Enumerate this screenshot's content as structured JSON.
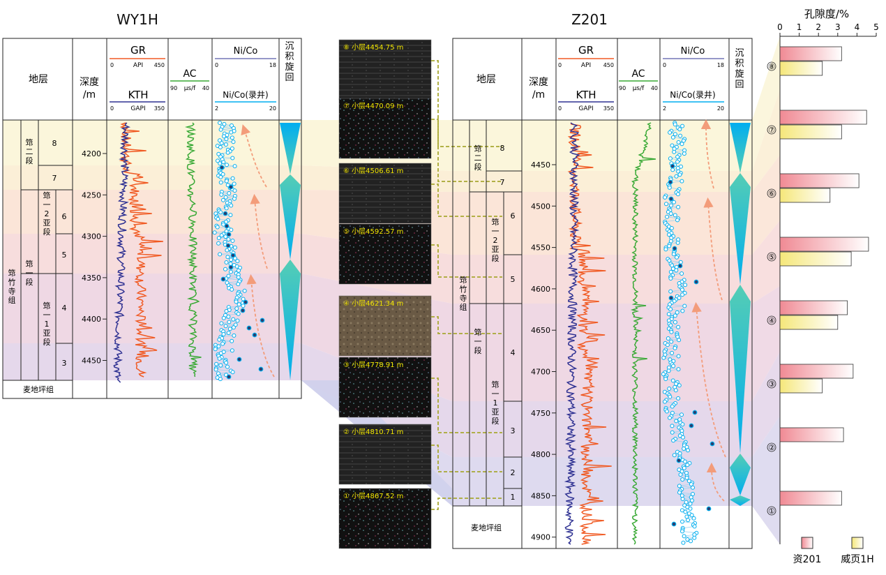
{
  "colors": {
    "gr": "#f05a23",
    "kth": "#2e3192",
    "ac": "#39a935",
    "nico": "#00aeef",
    "nico_log": "#5ab4e6",
    "thin_line": "#9fd3f0",
    "arrow": "#f39c7a",
    "bar_z201": "#f08a94",
    "bar_wy1h": "#f7ea8a",
    "cycle_top": "#00aeef",
    "cycle_mid": "#4cc8b0"
  },
  "wy1h": {
    "title": "WY1H",
    "headers": {
      "strata": "地层",
      "depth_l1": "深度",
      "depth_l2": "/m",
      "gr": "GR",
      "gr_unit": "API",
      "gr_min": "0",
      "gr_max": "450",
      "kth": "KTH",
      "kth_unit": "GAPI",
      "kth_min": "0",
      "kth_max": "350",
      "ac": "AC",
      "ac_unit": "μs/f",
      "ac_min": "90",
      "ac_max": "40",
      "nico": "Ni/Co",
      "nico_min": "0",
      "nico_max": "18",
      "nico_log": "Ni/Co(录井)",
      "nico_log_min": "2",
      "nico_log_max": "20",
      "cycle": "沉积旋回"
    },
    "depth_ticks": [
      "4200",
      "4250",
      "4300",
      "4350",
      "4400",
      "4450"
    ],
    "formation": "筇竹寺组",
    "members": [
      "筇二段",
      "筇一段"
    ],
    "submembers": [
      "筇一2亚段",
      "筇一1亚段"
    ],
    "layers": [
      "8",
      "7",
      "6",
      "5",
      "4",
      "3"
    ],
    "base": "麦地坪组"
  },
  "z201": {
    "title": "Z201",
    "headers": {
      "strata": "地层",
      "depth_l1": "深度",
      "depth_l2": "/m",
      "gr": "GR",
      "gr_unit": "API",
      "gr_min": "0",
      "gr_max": "450",
      "kth": "KTH",
      "kth_unit": "GAPI",
      "kth_min": "0",
      "kth_max": "350",
      "ac": "AC",
      "ac_unit": "μs/f",
      "ac_min": "90",
      "ac_max": "40",
      "nico": "Ni/Co",
      "nico_min": "0",
      "nico_max": "18",
      "nico_log": "Ni/Co(录井)",
      "nico_log_min": "2",
      "nico_log_max": "20",
      "cycle": "沉积旋回"
    },
    "depth_ticks": [
      "4450",
      "4500",
      "4550",
      "4600",
      "4650",
      "4700",
      "4750",
      "4800",
      "4850",
      "4900"
    ],
    "formation": "筇竹寺组",
    "members": [
      "筇二段",
      "筇一段"
    ],
    "submembers": [
      "筇一2亚段",
      "筇一1亚段"
    ],
    "layers": [
      "8",
      "7",
      "6",
      "5",
      "4",
      "3",
      "2",
      "1"
    ],
    "base": "麦地坪组"
  },
  "core_images": [
    "⑧ 小层4454.75 m",
    "⑦ 小层4470.09 m",
    "⑥ 小层4506.61 m",
    "⑤ 小层4592.57 m",
    "④ 小层4621.34 m",
    "③ 小层4778.91 m",
    "② 小层4810.71 m",
    "① 小层4867.52 m"
  ],
  "chart_data": {
    "type": "bar",
    "orientation": "horizontal",
    "title": "孔隙度/%",
    "xlabel": "孔隙度/%",
    "xlim": [
      0,
      5
    ],
    "x_ticks": [
      "0",
      "1",
      "2",
      "3",
      "4",
      "5"
    ],
    "categories": [
      "⑧",
      "⑦",
      "⑥",
      "⑤",
      "④",
      "③",
      "②",
      "①"
    ],
    "series": [
      {
        "name": "资201",
        "values": [
          3.2,
          4.5,
          4.1,
          4.6,
          3.5,
          3.8,
          3.3,
          3.2
        ]
      },
      {
        "name": "威页1H",
        "values": [
          2.2,
          3.2,
          2.6,
          3.7,
          3.0,
          2.2,
          null,
          null
        ]
      }
    ],
    "legend": [
      "资201",
      "威页1H"
    ],
    "legend_position": "bottom"
  }
}
